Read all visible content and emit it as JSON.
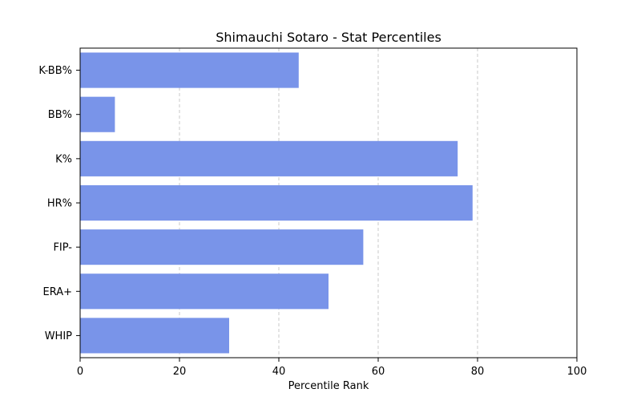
{
  "chart_data": {
    "type": "bar",
    "orientation": "horizontal",
    "title": "Shimauchi Sotaro - Stat Percentiles",
    "xlabel": "Percentile Rank",
    "ylabel": "",
    "xlim": [
      0,
      100
    ],
    "x_ticks": [
      0,
      20,
      40,
      60,
      80,
      100
    ],
    "grid": "x-dashed",
    "categories": [
      "K-BB%",
      "BB%",
      "K%",
      "HR%",
      "FIP-",
      "ERA+",
      "WHIP"
    ],
    "values": [
      44,
      7,
      76,
      79,
      57,
      50,
      30
    ],
    "bar_color": "#7994e9"
  }
}
